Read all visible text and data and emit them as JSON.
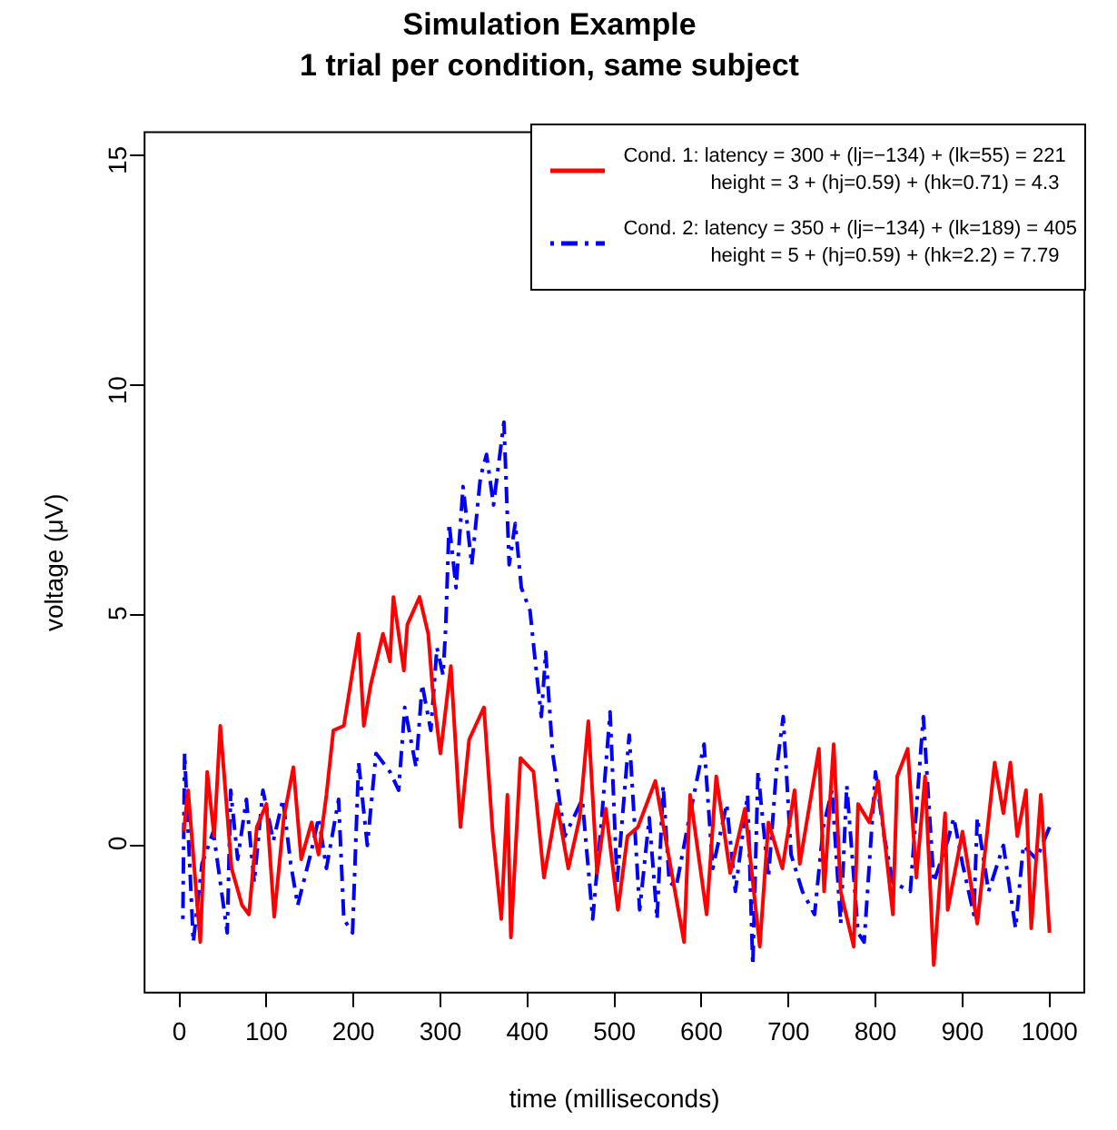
{
  "chart_data": {
    "type": "line",
    "title": "Simulation Example",
    "subtitle": "1 trial per condition, same subject",
    "xlabel": "time (milliseconds)",
    "ylabel": "voltage (μV)",
    "xlim": [
      -40,
      1040
    ],
    "xticks": [
      0,
      100,
      200,
      300,
      400,
      500,
      600,
      700,
      800,
      900,
      1000
    ],
    "ylim": [
      -3.2,
      15.5
    ],
    "yticks": [
      0,
      5,
      10,
      15
    ],
    "grid": false,
    "legend": "top right",
    "marker": "none",
    "series": [
      {
        "name": "Cond. 1: latency = 300 + (lj=−134) + (lk=55) = 221\nheight = 3 + (hj=0.59) + (hk=0.71) = 4.3",
        "color": "#ff0000",
        "line_style": "solid",
        "x": [
          5,
          10,
          24,
          32,
          40,
          47,
          60,
          72,
          80,
          89,
          100,
          109,
          120,
          131,
          140,
          152,
          160,
          169,
          177,
          189,
          206,
          212,
          220,
          234,
          242,
          246,
          258,
          262,
          276,
          286,
          291,
          300,
          312,
          323,
          333,
          350,
          360,
          370,
          377,
          381,
          392,
          407,
          419,
          434,
          447,
          460,
          470,
          480,
          490,
          504,
          515,
          527,
          547,
          563,
          580,
          587,
          606,
          617,
          633,
          650,
          667,
          677,
          693,
          707,
          713,
          735,
          741,
          752,
          760,
          775,
          780,
          793,
          803,
          820,
          825,
          837,
          847,
          857,
          867,
          880,
          883,
          900,
          917,
          937,
          947,
          955,
          963,
          973,
          979,
          990,
          1000
        ],
        "values": [
          0.3,
          1.2,
          -2.1,
          1.6,
          0.2,
          2.6,
          -0.5,
          -1.3,
          -1.5,
          0.4,
          0.9,
          -1.55,
          0.6,
          1.7,
          -0.3,
          0.5,
          -0.2,
          1.1,
          2.5,
          2.6,
          4.6,
          2.6,
          3.5,
          4.6,
          4.0,
          5.4,
          3.8,
          4.8,
          5.4,
          4.6,
          3.4,
          2.0,
          3.9,
          0.4,
          2.3,
          3.0,
          0.3,
          -1.6,
          1.1,
          -2.0,
          1.9,
          1.6,
          -0.7,
          0.9,
          -0.5,
          0.6,
          2.7,
          -0.6,
          0.8,
          -1.4,
          0.2,
          0.4,
          1.4,
          -0.3,
          -2.1,
          1.1,
          -1.5,
          1.5,
          -0.6,
          0.8,
          -2.2,
          0.5,
          -0.5,
          1.2,
          -0.4,
          2.1,
          -1.0,
          2.2,
          -1.0,
          -2.2,
          0.9,
          0.5,
          1.4,
          -1.5,
          1.5,
          2.1,
          -0.7,
          1.5,
          -2.6,
          0.7,
          -1.4,
          0.3,
          -1.7,
          1.8,
          0.7,
          1.8,
          0.2,
          1.2,
          -1.8,
          1.1,
          -1.9
        ]
      },
      {
        "name": "Cond. 2: latency = 350 + (lj=−134) + (lk=189) = 405\nheight = 5 + (hj=0.59) + (hk=2.2) = 7.79",
        "color": "#0000ff",
        "line_style": "dashed",
        "x": [
          4,
          6,
          16,
          26,
          39,
          55,
          59,
          67,
          77,
          86,
          96,
          108,
          119,
          128,
          136,
          152,
          160,
          169,
          183,
          189,
          199,
          206,
          216,
          226,
          242,
          252,
          259,
          272,
          279,
          289,
          296,
          303,
          306,
          310,
          318,
          326,
          336,
          346,
          353,
          361,
          373,
          379,
          386,
          393,
          403,
          409,
          416,
          421,
          429,
          443,
          463,
          475,
          485,
          495,
          503,
          517,
          529,
          540,
          549,
          556,
          563,
          571,
          585,
          603,
          613,
          629,
          639,
          653,
          659,
          665,
          677,
          686,
          694,
          703,
          716,
          730,
          740,
          750,
          760,
          767,
          780,
          787,
          800,
          810,
          820,
          840,
          855,
          867,
          883,
          890,
          900,
          913,
          917,
          930,
          947,
          961,
          970,
          985,
          1000
        ],
        "values": [
          -1.6,
          2.0,
          -2.1,
          -0.4,
          0.3,
          -1.9,
          1.2,
          -0.3,
          1.0,
          -0.8,
          1.2,
          0.1,
          1.0,
          -0.4,
          -1.3,
          -0.1,
          0.6,
          -0.5,
          1.0,
          -1.6,
          -1.9,
          1.8,
          0.0,
          2.0,
          1.6,
          1.2,
          3.0,
          1.7,
          3.5,
          2.5,
          4.3,
          3.7,
          4.7,
          7.0,
          5.6,
          7.8,
          6.1,
          8.0,
          8.5,
          7.4,
          9.2,
          6.1,
          7.0,
          5.6,
          5.1,
          4.0,
          2.8,
          4.2,
          2.0,
          0.2,
          1.0,
          -1.6,
          0.5,
          2.9,
          -0.8,
          2.4,
          -1.4,
          0.6,
          -1.6,
          1.3,
          -0.8,
          -0.9,
          0.5,
          2.2,
          -0.5,
          0.9,
          -1.0,
          1.1,
          -2.6,
          1.6,
          -0.7,
          1.6,
          2.8,
          -0.2,
          -1.0,
          -1.5,
          0.4,
          1.2,
          -1.7,
          1.3,
          -1.9,
          -2.1,
          1.6,
          0.2,
          -0.8,
          -1.0,
          2.8,
          -0.8,
          0.1,
          0.6,
          -0.4,
          -1.5,
          0.6,
          -1.0,
          0.0,
          -1.8,
          0.0,
          -0.3,
          0.4
        ]
      }
    ]
  }
}
